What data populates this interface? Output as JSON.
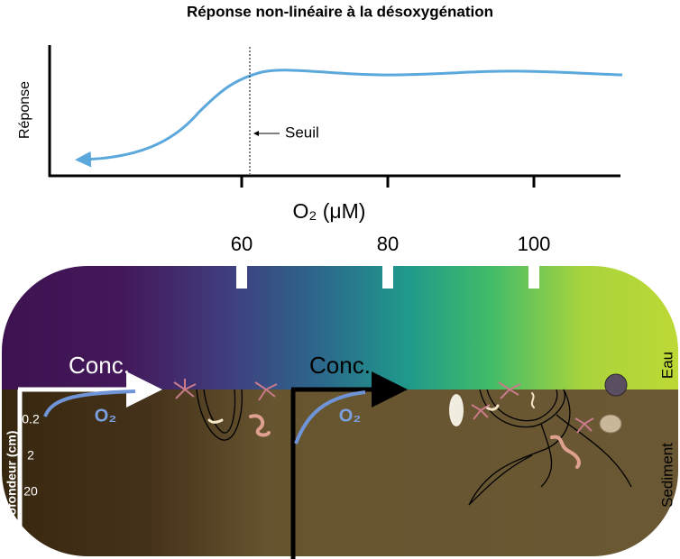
{
  "chart": {
    "title": "Réponse non-linéaire à la désoxygénation",
    "y_label": "Réponse",
    "x_label": "O₂ (μM)",
    "xticks": [
      60,
      80,
      100
    ],
    "annotation": "Seuil"
  },
  "diagram": {
    "water_label": "Eau",
    "sediment_label": "Sediment",
    "depth_label": "Profondeur (cm)",
    "depth_ticks": [
      "0.2",
      "2",
      "20"
    ],
    "left_profile": {
      "axis_label": "Conc.",
      "curve_label": "O₂"
    },
    "right_profile": {
      "axis_label": "Conc.",
      "curve_label": "O₂"
    }
  }
}
